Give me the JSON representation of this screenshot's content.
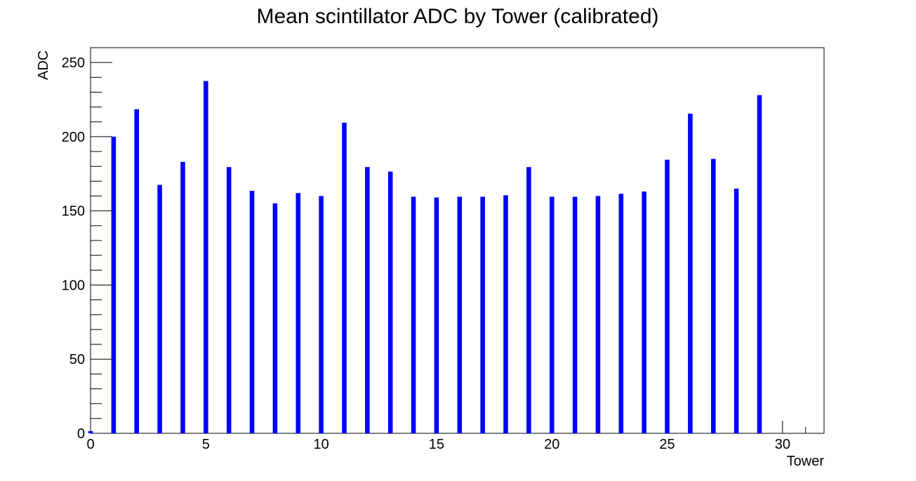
{
  "chart_data": {
    "type": "bar",
    "title": "Mean scintillator ADC by Tower (calibrated)",
    "xlabel": "Tower",
    "ylabel": "ADC",
    "xlim": [
      0,
      31.8
    ],
    "ylim": [
      0,
      260
    ],
    "grid": false,
    "legend": "none",
    "x_ticks": [
      0,
      5,
      10,
      15,
      20,
      25,
      30
    ],
    "y_ticks": [
      0,
      50,
      100,
      150,
      200,
      250
    ],
    "x": [
      0,
      1,
      2,
      3,
      4,
      5,
      6,
      7,
      8,
      9,
      10,
      11,
      12,
      13,
      14,
      15,
      16,
      17,
      18,
      19,
      20,
      21,
      22,
      23,
      24,
      25,
      26,
      27,
      28,
      29,
      30,
      31
    ],
    "values": [
      1.5,
      200,
      218.5,
      167.5,
      183,
      237.5,
      179.5,
      163.5,
      155,
      162,
      160,
      209.5,
      179.5,
      176.5,
      159.5,
      159,
      159.5,
      159.5,
      160.5,
      179.5,
      159.5,
      159.5,
      160,
      161.5,
      163,
      184.5,
      215.5,
      185,
      165,
      228,
      0,
      0
    ],
    "bar_color": "#0000ff"
  }
}
